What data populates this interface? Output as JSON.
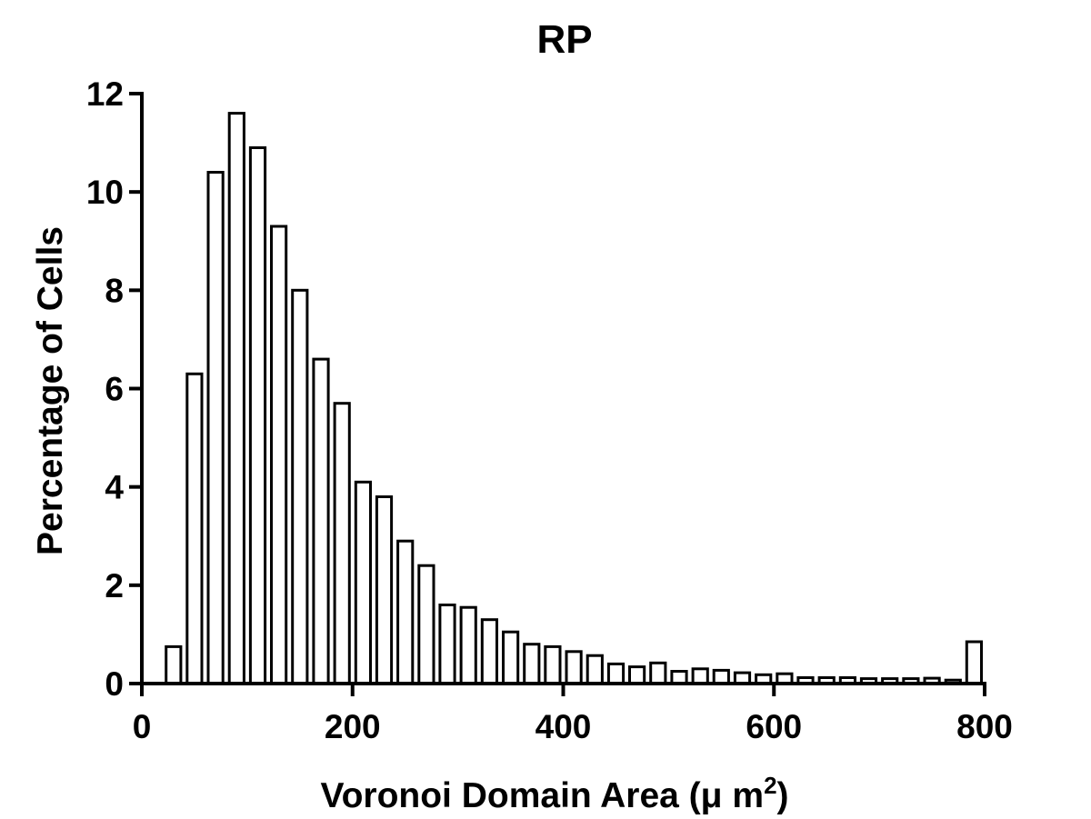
{
  "chart_data": {
    "type": "bar",
    "title": "RP",
    "xlabel": {
      "text": "Voronoi Domain Area (",
      "mu": "μ",
      "unit": " m",
      "superscript": "2",
      "close": ")"
    },
    "ylabel": "Percentage of Cells",
    "xlim": [
      0,
      800
    ],
    "ylim": [
      0,
      12
    ],
    "x_ticks": [
      0,
      200,
      400,
      600,
      800
    ],
    "y_ticks": [
      0,
      2,
      4,
      6,
      8,
      10,
      12
    ],
    "x_tick_labels": [
      "0",
      "200",
      "400",
      "600",
      "800"
    ],
    "y_tick_labels": [
      "0",
      "2",
      "4",
      "6",
      "8",
      "10",
      "12"
    ],
    "bin_width": 20,
    "grid": false,
    "legend": false,
    "x": [
      30,
      50,
      70,
      90,
      110,
      130,
      150,
      170,
      190,
      210,
      230,
      250,
      270,
      290,
      310,
      330,
      350,
      370,
      390,
      410,
      430,
      450,
      470,
      490,
      510,
      530,
      550,
      570,
      590,
      610,
      630,
      650,
      670,
      690,
      710,
      730,
      750,
      770,
      790
    ],
    "values": [
      0.75,
      6.3,
      10.4,
      11.6,
      10.9,
      9.3,
      8.0,
      6.6,
      5.7,
      4.1,
      3.8,
      2.9,
      2.4,
      1.6,
      1.55,
      1.3,
      1.05,
      0.8,
      0.75,
      0.65,
      0.57,
      0.4,
      0.34,
      0.42,
      0.25,
      0.3,
      0.27,
      0.22,
      0.18,
      0.2,
      0.12,
      0.12,
      0.12,
      0.1,
      0.1,
      0.1,
      0.11,
      0.07,
      0.85
    ],
    "colors": {
      "bar_fill": "#ffffff",
      "bar_stroke": "#000000",
      "axis": "#000000",
      "text": "#000000"
    }
  }
}
